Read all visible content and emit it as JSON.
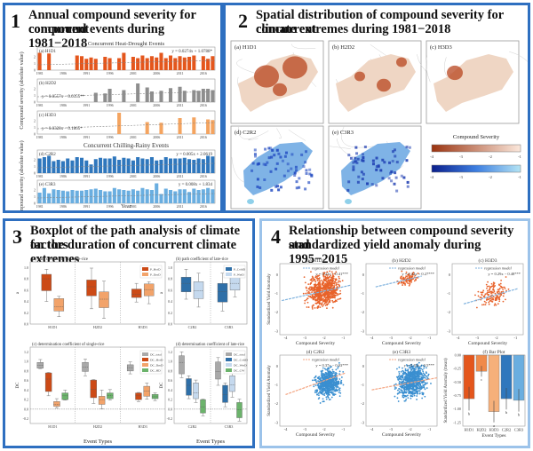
{
  "panels": {
    "p1": {
      "number": "1",
      "title_line1": "Annual compound severity for concurrent",
      "title_line2": "compound events during 1981−2018",
      "group1_title": "Concurrent Heat-Drought Events",
      "group2_title": "Concurrent Chilling-Rainy Events",
      "ylabel": "Compound severity (absolute value)",
      "xlabel": "Year",
      "xticks": [
        "1981",
        "1986",
        "1991",
        "1996",
        "2001",
        "2006",
        "2011",
        "2016"
      ]
    },
    "p2": {
      "number": "2",
      "title_line1": "Spatial distribution of compound severity for concurrent",
      "title_line2": "climate extremes during 1981−2018",
      "maps": [
        {
          "label": "(a) H1D1",
          "color": "#b8451f"
        },
        {
          "label": "(b) H2D2",
          "color": "#b8451f"
        },
        {
          "label": "(c) H3D3",
          "color": "#b8451f"
        },
        {
          "label": "(d) C2R2",
          "color": "#1f48c0"
        },
        {
          "label": "(e) C3R3",
          "color": "#1f48c0"
        }
      ],
      "legend_title": "Compound Severity",
      "legend_ticks": [
        "-4",
        "-3",
        "-2",
        "-1"
      ]
    },
    "p3": {
      "number": "3",
      "title_line1": "Boxplot of the path analysis of climate factors",
      "title_line2": "on the duration of concurrent climate extremes",
      "sub_a": "(a) path coefficient of single-rice",
      "sub_b": "(b) path coefficient of late-rice",
      "sub_c": "(c) determination coefficient of single-rice",
      "sub_d": "(d) determination coefficient of late-rice",
      "ylabel_top": "a",
      "ylabel_bottom": "DC",
      "xlabel": "Event Types",
      "yticks_top": [
        "0.0",
        "0.2",
        "0.4",
        "0.6",
        "0.8",
        "1.0"
      ],
      "yticks_bottom": [
        "-0.2",
        "0.0",
        "0.2",
        "0.4",
        "0.6",
        "0.8",
        "1.0",
        "1.2"
      ],
      "cats_single": [
        "H1D1",
        "H2D2",
        "H3D3"
      ],
      "cats_late": [
        "C2R2",
        "C3R3"
      ],
      "legend_a": [
        "P_HotD",
        "P_DryD"
      ],
      "legend_b": [
        "P_ColdD",
        "P_WetD"
      ],
      "legend_c": [
        "DC_total",
        "DC_HotD",
        "DC_DryD",
        "DC_HD"
      ],
      "legend_d": [
        "DC_total",
        "DC_ColdD",
        "DC_WetD",
        "DC_CW"
      ]
    },
    "p4": {
      "number": "4",
      "title_line1": "Relationship between compound severity and",
      "title_line2": "standardized yield anomaly during 1995−2015",
      "xlabel": "Compound Severity",
      "ylabel": "Standardized Yield Anomaly",
      "legend_label": "regression model",
      "scatters": [
        {
          "label": "(a) H1D1",
          "eq": "y = 0.23x − 0.41***",
          "color": "#e8622a",
          "line": "#7fb2de"
        },
        {
          "label": "(b) H2D2",
          "eq": "y = 0.24x + 0.27***",
          "color": "#e8622a",
          "line": "#7fb2de"
        },
        {
          "label": "(c) H3D3",
          "eq": "y = 0.29x − 0.48***",
          "color": "#e8622a",
          "line": "#7fb2de"
        },
        {
          "label": "(d) C2R2",
          "eq": "y = 0.37x − 0.03***",
          "color": "#3a8fd0",
          "line": "#f4a582"
        },
        {
          "label": "(e) C3R3",
          "eq": "y = 0.19x − 0.5***",
          "color": "#3a8fd0",
          "line": "#f4a582"
        }
      ],
      "bar_title": "(f) Bar Plot",
      "bar_ylabel": "Standardized Yield Anomaly (mean)",
      "bar_xlabel": "Event Types",
      "bar_yticks": [
        "0.00",
        "-0.25",
        "-0.50",
        "-0.75",
        "-1.00",
        "-1.25"
      ],
      "xticks": [
        "-4",
        "-3",
        "-2",
        "-1"
      ],
      "yticks": [
        "0",
        "-1",
        "-2",
        "-3"
      ]
    }
  },
  "chart_data": [
    {
      "type": "bar",
      "title": "(a) H1D1 annual compound severity",
      "equation": "y = 0.0274x + 1.0788*",
      "x": [
        1981,
        1982,
        1983,
        1984,
        1985,
        1986,
        1987,
        1988,
        1989,
        1990,
        1991,
        1992,
        1993,
        1994,
        1995,
        1996,
        1997,
        1998,
        1999,
        2000,
        2001,
        2002,
        2003,
        2004,
        2005,
        2006,
        2007,
        2008,
        2009,
        2010,
        2011,
        2012,
        2013,
        2014,
        2015,
        2016,
        2017,
        2018
      ],
      "values": [
        2.6,
        0,
        2.5,
        0,
        0,
        0,
        0,
        0,
        2.2,
        2.1,
        1.7,
        1.9,
        1.7,
        0,
        2.0,
        1.8,
        0,
        1.8,
        2.6,
        0,
        2.0,
        1.8,
        2.2,
        1.8,
        2.1,
        1.9,
        2.6,
        1.8,
        2.2,
        1.8,
        2.1,
        1.9,
        2.0,
        2.2,
        0,
        2.1,
        1.7,
        2.1
      ],
      "color": "#e4561c",
      "ylim": [
        0,
        2.6
      ]
    },
    {
      "type": "bar",
      "title": "(b) H2D2 annual compound severity",
      "equation": "y = 0.0557x − 0.0355**",
      "x": [
        1981,
        1982,
        1983,
        1984,
        1985,
        1986,
        1987,
        1988,
        1989,
        1990,
        1991,
        1992,
        1993,
        1994,
        1995,
        1996,
        1997,
        1998,
        1999,
        2000,
        2001,
        2002,
        2003,
        2004,
        2005,
        2006,
        2007,
        2008,
        2009,
        2010,
        2011,
        2012,
        2013,
        2014,
        2015,
        2016,
        2017,
        2018
      ],
      "values": [
        0,
        0,
        0,
        0,
        0,
        0,
        0,
        0,
        0,
        0,
        0,
        0,
        1.4,
        0,
        1.3,
        2.0,
        0,
        0,
        1.8,
        0,
        0,
        2.8,
        0,
        2.2,
        1.6,
        0,
        1.7,
        0,
        2.1,
        0,
        2.3,
        1.7,
        0,
        1.8,
        1.7,
        2.0,
        2.0,
        1.8
      ],
      "color": "#8e8e8e"
    },
    {
      "type": "bar",
      "title": "(c) H3D3 annual compound severity",
      "equation": "y = 0.0328x − 0.1865*",
      "x": [
        1981,
        1982,
        1983,
        1984,
        1985,
        1986,
        1987,
        1988,
        1989,
        1990,
        1991,
        1992,
        1993,
        1994,
        1995,
        1996,
        1997,
        1998,
        1999,
        2000,
        2001,
        2002,
        2003,
        2004,
        2005,
        2006,
        2007,
        2008,
        2009,
        2010,
        2011,
        2012,
        2013,
        2014,
        2015,
        2016,
        2017,
        2018
      ],
      "values": [
        0,
        0,
        0,
        0,
        0,
        0,
        0,
        0,
        0,
        0,
        0,
        0,
        0,
        0,
        0,
        0,
        0,
        3.2,
        0,
        0,
        0,
        0,
        0,
        1.8,
        0,
        0,
        1.7,
        0,
        0,
        0,
        2.4,
        0,
        0,
        2.5,
        0,
        0,
        2.2,
        2.1
      ],
      "color": "#f4a460"
    },
    {
      "type": "bar",
      "title": "(d) C2R2 annual compound severity",
      "equation": "y = 0.005x + 2.0619",
      "x": [
        1981,
        1982,
        1983,
        1984,
        1985,
        1986,
        1987,
        1988,
        1989,
        1990,
        1991,
        1992,
        1993,
        1994,
        1995,
        1996,
        1997,
        1998,
        1999,
        2000,
        2001,
        2002,
        2003,
        2004,
        2005,
        2006,
        2007,
        2008,
        2009,
        2010,
        2011,
        2012,
        2013,
        2014,
        2015,
        2016,
        2017,
        2018
      ],
      "values": [
        2.2,
        2.4,
        2.6,
        1.8,
        2.0,
        1.8,
        2.2,
        1.9,
        2.4,
        2.3,
        1.9,
        1.3,
        2.1,
        2.3,
        2.2,
        2.2,
        2.5,
        2.0,
        2.3,
        2.2,
        1.9,
        2.4,
        2.2,
        2.1,
        2.4,
        1.9,
        2.0,
        2.4,
        2.2,
        2.2,
        2.2,
        2.3,
        2.1,
        2.0,
        2.2,
        2.1,
        2.6,
        2.5
      ],
      "color": "#2f77bd"
    },
    {
      "type": "bar",
      "title": "(e) C3R3 annual compound severity",
      "equation": "y = 0.008x + 1.834",
      "x": [
        1981,
        1982,
        1983,
        1984,
        1985,
        1986,
        1987,
        1988,
        1989,
        1990,
        1991,
        1992,
        1993,
        1994,
        1995,
        1996,
        1997,
        1998,
        1999,
        2000,
        2001,
        2002,
        2003,
        2004,
        2005,
        2006,
        2007,
        2008,
        2009,
        2010,
        2011,
        2012,
        2013,
        2014,
        2015,
        2016,
        2017,
        2018
      ],
      "values": [
        1.6,
        2.3,
        1.5,
        2.1,
        2.0,
        1.9,
        1.8,
        2.0,
        1.9,
        1.9,
        2.0,
        2.1,
        2.2,
        2.0,
        1.8,
        1.8,
        2.3,
        2.1,
        2.0,
        1.9,
        2.1,
        1.9,
        2.3,
        2.1,
        2.0,
        3.0,
        1.4,
        2.2,
        2.0,
        1.8,
        2.1,
        2.1,
        1.7,
        2.2,
        2.0,
        2.1,
        2.3,
        2.1
      ],
      "color": "#6aaee0"
    },
    {
      "type": "bar",
      "title": "(f) Bar Plot",
      "categories": [
        "H1D1",
        "H2D2",
        "H3D3",
        "C2R2",
        "C3R3"
      ],
      "values": [
        -0.81,
        -0.3,
        -1.05,
        -0.81,
        -0.84
      ],
      "errors": [
        0.22,
        0.1,
        0.2,
        0.2,
        0.21
      ],
      "letters": [
        "b",
        "c",
        "a",
        "b",
        "b"
      ],
      "colors": [
        "#e4561c",
        "#f08a4a",
        "#f6b07a",
        "#2f77bd",
        "#6aaee0"
      ],
      "ylim": [
        -1.25,
        0
      ]
    }
  ]
}
